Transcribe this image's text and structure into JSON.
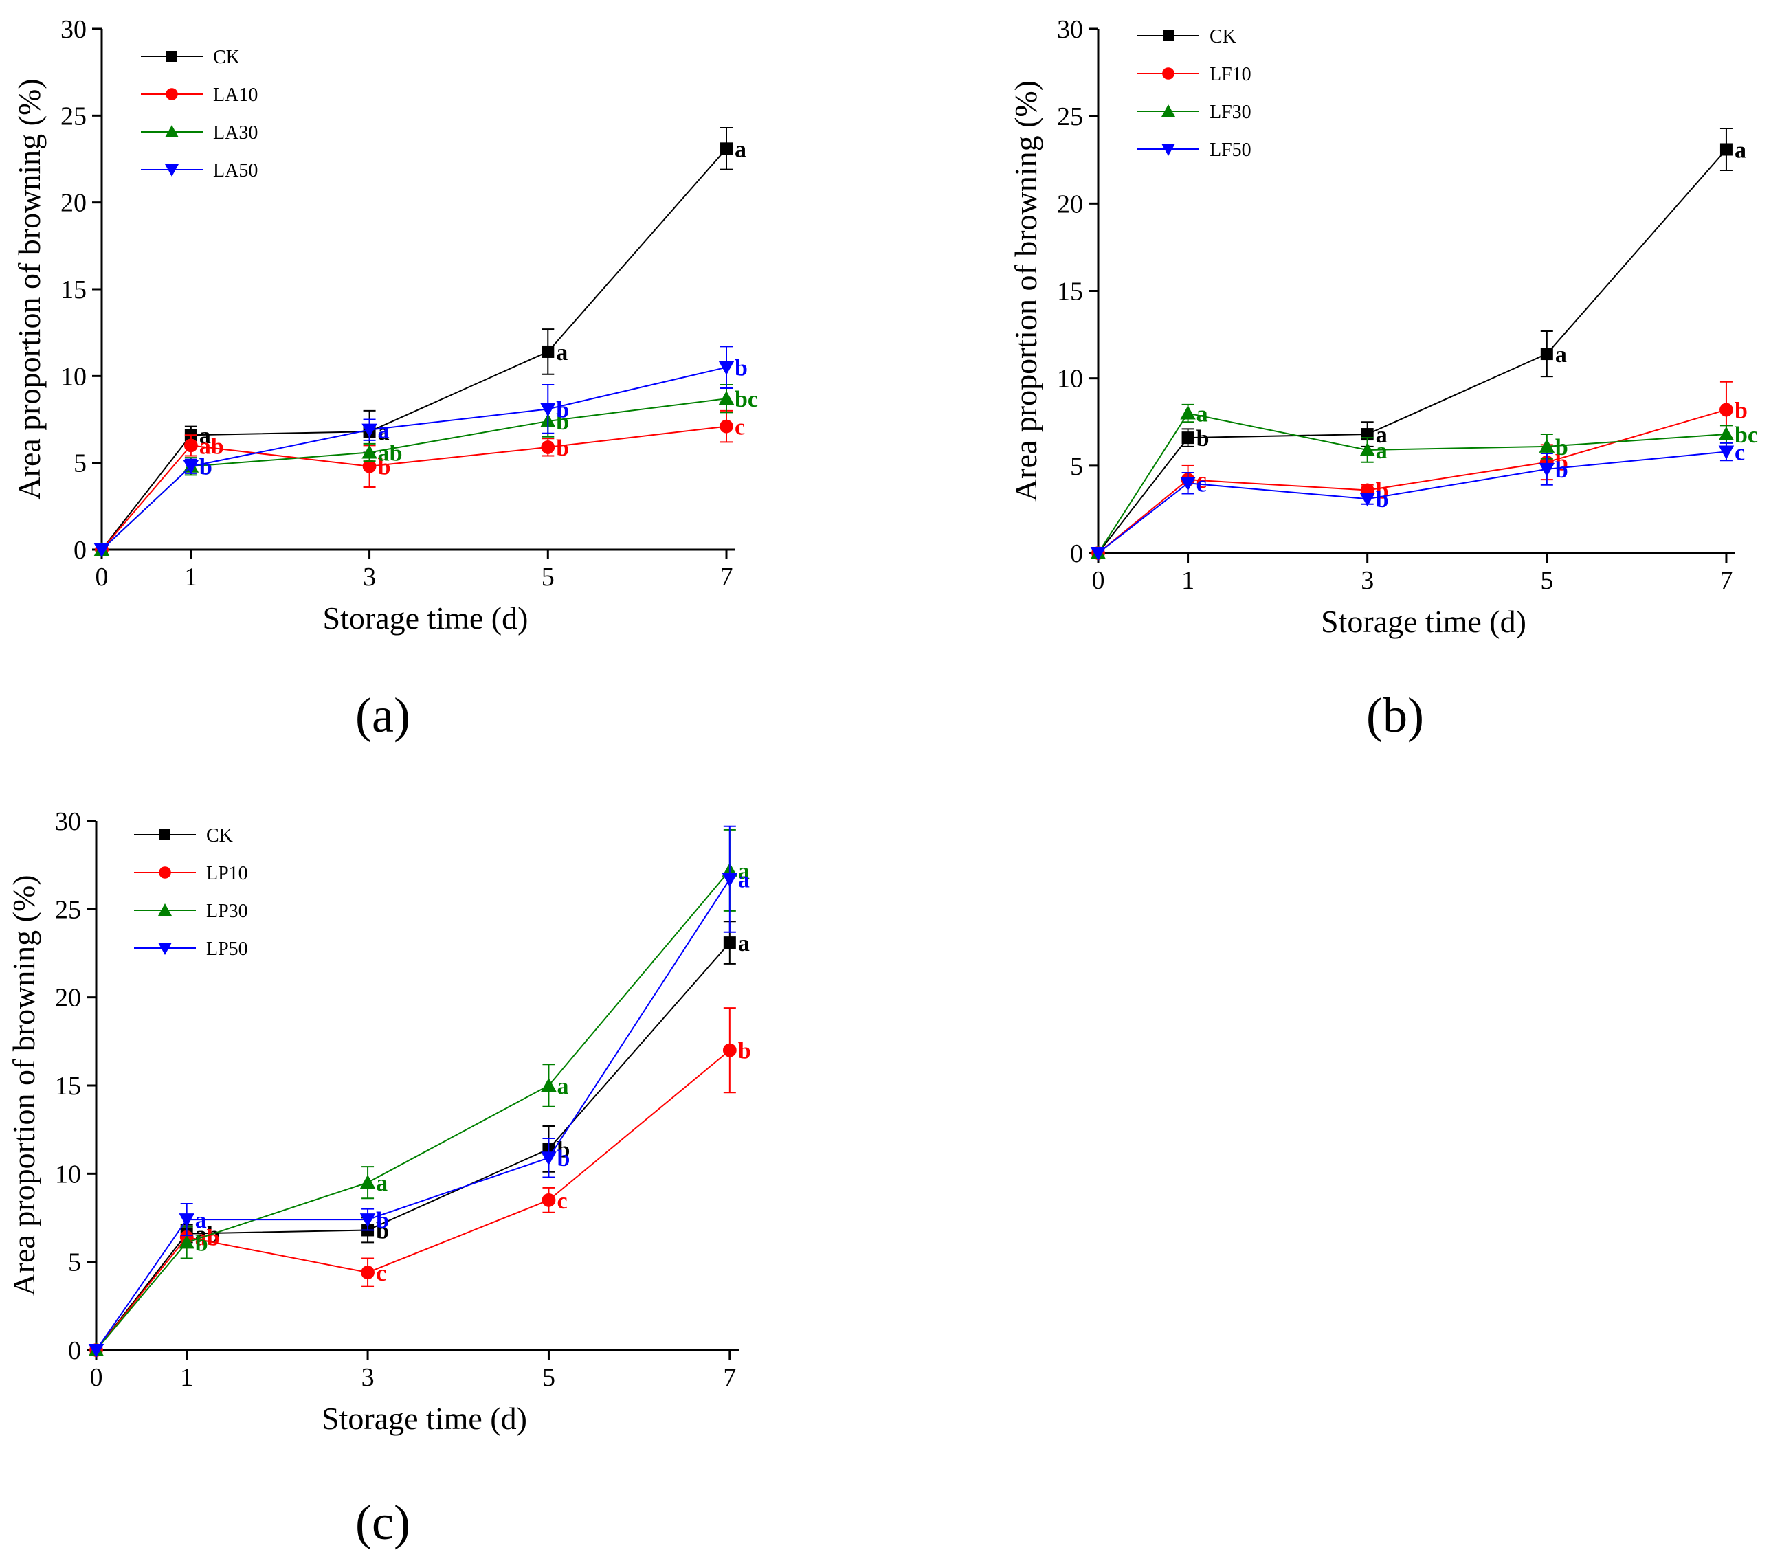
{
  "chart_data": [
    {
      "type": "line",
      "panel_label": "(a)",
      "xlabel": "Storage time (d)",
      "ylabel": "Area proportion of browning (%)",
      "xlim": [
        0,
        7.1
      ],
      "ylim": [
        0,
        30
      ],
      "x_ticks": [
        "0",
        "1",
        "3",
        "5",
        "7"
      ],
      "y_ticks": [
        "0",
        "5",
        "10",
        "15",
        "20",
        "25",
        "30"
      ],
      "legend_position": "top-left",
      "x": [
        0,
        1,
        3,
        5,
        7
      ],
      "series": [
        {
          "name": "CK",
          "color": "#000000",
          "marker": "square",
          "values": [
            0,
            6.6,
            6.8,
            11.4,
            23.1
          ],
          "errors": [
            0,
            0.5,
            1.2,
            1.3,
            1.2
          ],
          "letters": [
            "",
            "a",
            "a",
            "a",
            "a"
          ]
        },
        {
          "name": "LA10",
          "color": "#ff0000",
          "marker": "circle",
          "values": [
            0,
            6.0,
            4.8,
            5.9,
            7.1
          ],
          "errors": [
            0,
            0.6,
            1.2,
            0.5,
            0.9
          ],
          "letters": [
            "",
            "ab",
            "b",
            "b",
            "c"
          ]
        },
        {
          "name": "LA30",
          "color": "#008000",
          "marker": "triangle-up",
          "values": [
            0,
            4.8,
            5.6,
            7.4,
            8.7
          ],
          "errors": [
            0,
            0.5,
            0.5,
            0.9,
            0.8
          ],
          "letters": [
            "",
            "b",
            "ab",
            "b",
            "bc"
          ]
        },
        {
          "name": "LA50",
          "color": "#0000ff",
          "marker": "triangle-down",
          "values": [
            0,
            4.8,
            6.9,
            8.1,
            10.5
          ],
          "errors": [
            0,
            0.4,
            0.6,
            1.4,
            1.2
          ],
          "letters": [
            "",
            "b",
            "a",
            "b",
            "b"
          ]
        }
      ]
    },
    {
      "type": "line",
      "panel_label": "(b)",
      "xlabel": "Storage time (d)",
      "ylabel": "Area proportion of browning (%)",
      "xlim": [
        0,
        7.1
      ],
      "ylim": [
        0,
        30
      ],
      "x_ticks": [
        "0",
        "1",
        "3",
        "5",
        "7"
      ],
      "y_ticks": [
        "0",
        "5",
        "10",
        "15",
        "20",
        "25",
        "30"
      ],
      "legend_position": "top-left",
      "x": [
        0,
        1,
        3,
        5,
        7
      ],
      "series": [
        {
          "name": "CK",
          "color": "#000000",
          "marker": "square",
          "values": [
            0,
            6.6,
            6.8,
            11.4,
            23.1
          ],
          "errors": [
            0,
            0.5,
            0.7,
            1.3,
            1.2
          ],
          "letters": [
            "",
            "b",
            "a",
            "a",
            "a"
          ]
        },
        {
          "name": "LF10",
          "color": "#ff0000",
          "marker": "circle",
          "values": [
            0,
            4.2,
            3.6,
            5.2,
            8.2
          ],
          "errors": [
            0,
            0.8,
            0.3,
            1.0,
            1.6
          ],
          "letters": [
            "",
            "c",
            "b",
            "b",
            "b"
          ]
        },
        {
          "name": "LF30",
          "color": "#008000",
          "marker": "triangle-up",
          "values": [
            0,
            8.0,
            5.9,
            6.1,
            6.8
          ],
          "errors": [
            0,
            0.5,
            0.7,
            0.7,
            0.5
          ],
          "letters": [
            "",
            "a",
            "a",
            "b",
            "bc"
          ]
        },
        {
          "name": "LF50",
          "color": "#0000ff",
          "marker": "triangle-down",
          "values": [
            0,
            4.0,
            3.1,
            4.8,
            5.8
          ],
          "errors": [
            0,
            0.6,
            0.3,
            0.9,
            0.5
          ],
          "letters": [
            "",
            "c",
            "b",
            "b",
            "c"
          ]
        }
      ]
    },
    {
      "type": "line",
      "panel_label": "(c)",
      "xlabel": "Storage time (d)",
      "ylabel": "Area proportion of browning (%)",
      "xlim": [
        0,
        7.1
      ],
      "ylim": [
        0,
        30
      ],
      "x_ticks": [
        "0",
        "1",
        "3",
        "5",
        "7"
      ],
      "y_ticks": [
        "0",
        "5",
        "10",
        "15",
        "20",
        "25",
        "30"
      ],
      "legend_position": "top-left",
      "x": [
        0,
        1,
        3,
        5,
        7
      ],
      "series": [
        {
          "name": "CK",
          "color": "#000000",
          "marker": "square",
          "values": [
            0,
            6.6,
            6.8,
            11.4,
            23.1
          ],
          "errors": [
            0,
            0.5,
            0.7,
            1.3,
            1.2
          ],
          "letters": [
            "",
            "ab",
            "b",
            "b",
            "a"
          ]
        },
        {
          "name": "LP10",
          "color": "#ff0000",
          "marker": "circle",
          "values": [
            0,
            6.4,
            4.4,
            8.5,
            17.0
          ],
          "errors": [
            0,
            0.6,
            0.8,
            0.7,
            2.4
          ],
          "letters": [
            "",
            "ab",
            "c",
            "c",
            "b"
          ]
        },
        {
          "name": "LP30",
          "color": "#008000",
          "marker": "triangle-up",
          "values": [
            0,
            6.1,
            9.5,
            15.0,
            27.2
          ],
          "errors": [
            0,
            0.9,
            0.9,
            1.2,
            2.3
          ],
          "letters": [
            "",
            "b",
            "a",
            "a",
            "a"
          ]
        },
        {
          "name": "LP50",
          "color": "#0000ff",
          "marker": "triangle-down",
          "values": [
            0,
            7.4,
            7.4,
            10.9,
            26.7
          ],
          "errors": [
            0,
            0.9,
            0.6,
            1.1,
            3.0
          ],
          "letters": [
            "",
            "a",
            "b",
            "b",
            "a"
          ]
        }
      ]
    }
  ]
}
